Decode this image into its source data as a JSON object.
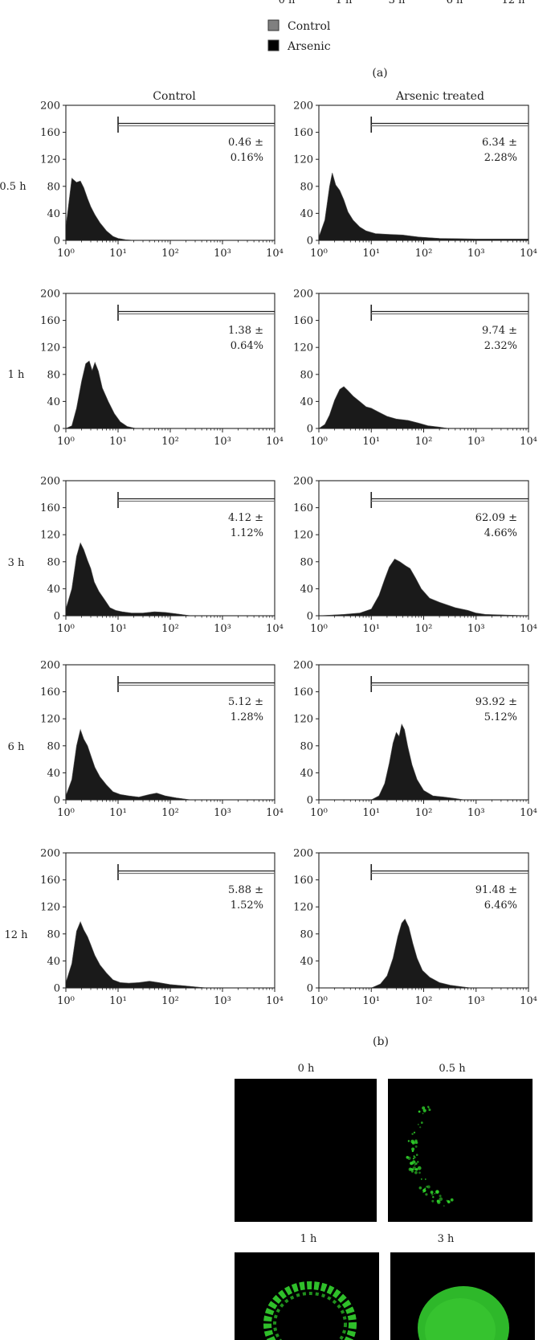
{
  "panel_a": {
    "label": "(a)",
    "x_tick_labels_clipped": [
      "0 h",
      "1 h",
      "3 h",
      "6 h",
      "12 h"
    ],
    "legend": [
      {
        "name": "Control",
        "color": "#808080"
      },
      {
        "name": "Arsenic",
        "color": "#000000"
      }
    ]
  },
  "panel_b": {
    "label": "(b)",
    "column_titles": [
      "Control",
      "Arsenic treated"
    ],
    "row_labels": [
      "0.5 h",
      "1 h",
      "3 h",
      "6 h",
      "12 h"
    ]
  },
  "panel_c": {
    "column_labels_row1": [
      "0 h",
      "0.5 h"
    ],
    "column_labels_row2": [
      "1 h",
      "3 h"
    ],
    "image_color": "#000000",
    "fluorescence_color": "#22c22a"
  },
  "chart_data": [
    {
      "type": "area",
      "panel": "b",
      "row": "0.5 h",
      "column": "Control",
      "xscale": "log",
      "xlim": [
        1,
        10000
      ],
      "ylim": [
        0,
        200
      ],
      "yticks": [
        0,
        40,
        80,
        120,
        160,
        200
      ],
      "xtick_labels": [
        "10⁰",
        "10¹",
        "10²",
        "10³",
        "10⁴"
      ],
      "gate_start": 10,
      "gate_value": "0.46 ±",
      "gate_error": "0.16%",
      "x": [
        1,
        1.3,
        1.6,
        1.9,
        2.2,
        2.6,
        3,
        3.6,
        4.5,
        6,
        8,
        10,
        14,
        20,
        50,
        10000
      ],
      "y": [
        20,
        92,
        86,
        88,
        78,
        62,
        50,
        38,
        26,
        14,
        6,
        3,
        1,
        0,
        0,
        0
      ]
    },
    {
      "type": "area",
      "panel": "b",
      "row": "0.5 h",
      "column": "Arsenic treated",
      "xscale": "log",
      "xlim": [
        1,
        10000
      ],
      "ylim": [
        0,
        200
      ],
      "yticks": [
        0,
        40,
        80,
        120,
        160,
        200
      ],
      "xtick_labels": [
        "10⁰",
        "10¹",
        "10²",
        "10³",
        "10⁴"
      ],
      "gate_start": 10,
      "gate_value": "6.34 ±",
      "gate_error": "2.28%",
      "x": [
        1,
        1.3,
        1.6,
        1.8,
        2.1,
        2.5,
        3,
        3.6,
        4.5,
        6,
        8,
        12,
        20,
        40,
        80,
        200,
        1000,
        10000
      ],
      "y": [
        5,
        30,
        80,
        100,
        82,
        74,
        60,
        42,
        30,
        20,
        14,
        10,
        9,
        8,
        5,
        3,
        2,
        2
      ]
    },
    {
      "type": "area",
      "panel": "b",
      "row": "1 h",
      "column": "Control",
      "xscale": "log",
      "xlim": [
        1,
        10000
      ],
      "ylim": [
        0,
        200
      ],
      "yticks": [
        0,
        40,
        80,
        120,
        160,
        200
      ],
      "xtick_labels": [
        "10⁰",
        "10¹",
        "10²",
        "10³",
        "10⁴"
      ],
      "gate_start": 10,
      "gate_value": "1.38 ±",
      "gate_error": "0.64%",
      "x": [
        1,
        1.3,
        1.6,
        2,
        2.4,
        2.8,
        3.2,
        3.6,
        4.2,
        5,
        6.5,
        8.5,
        11,
        15,
        22,
        10000
      ],
      "y": [
        0,
        4,
        30,
        70,
        96,
        100,
        86,
        98,
        85,
        60,
        40,
        22,
        10,
        3,
        0,
        0
      ]
    },
    {
      "type": "area",
      "panel": "b",
      "row": "1 h",
      "column": "Arsenic treated",
      "xscale": "log",
      "xlim": [
        1,
        10000
      ],
      "ylim": [
        0,
        200
      ],
      "yticks": [
        0,
        40,
        80,
        120,
        160,
        200
      ],
      "xtick_labels": [
        "10⁰",
        "10¹",
        "10²",
        "10³",
        "10⁴"
      ],
      "gate_start": 10,
      "gate_value": "9.74 ±",
      "gate_error": "2.32%",
      "x": [
        1,
        1.3,
        1.6,
        2,
        2.5,
        3,
        3.6,
        4.5,
        6,
        8,
        10,
        14,
        20,
        30,
        50,
        80,
        120,
        200,
        300,
        10000
      ],
      "y": [
        0,
        6,
        20,
        42,
        58,
        62,
        56,
        48,
        40,
        32,
        30,
        24,
        18,
        14,
        12,
        8,
        4,
        2,
        0,
        0
      ]
    },
    {
      "type": "area",
      "panel": "b",
      "row": "3 h",
      "column": "Control",
      "xscale": "log",
      "xlim": [
        1,
        10000
      ],
      "ylim": [
        0,
        200
      ],
      "yticks": [
        0,
        40,
        80,
        120,
        160,
        200
      ],
      "xtick_labels": [
        "10⁰",
        "10¹",
        "10²",
        "10³",
        "10⁴"
      ],
      "gate_start": 10,
      "gate_value": "4.12 ±",
      "gate_error": "1.12%",
      "x": [
        1,
        1.3,
        1.6,
        1.9,
        2.2,
        2.6,
        3,
        3.5,
        4.3,
        5.5,
        7,
        9,
        12,
        18,
        30,
        50,
        80,
        130,
        250,
        10000
      ],
      "y": [
        10,
        40,
        88,
        108,
        98,
        82,
        70,
        50,
        36,
        24,
        12,
        8,
        6,
        4,
        4,
        6,
        5,
        3,
        0,
        0
      ]
    },
    {
      "type": "area",
      "panel": "b",
      "row": "3 h",
      "column": "Arsenic treated",
      "xscale": "log",
      "xlim": [
        1,
        10000
      ],
      "ylim": [
        0,
        200
      ],
      "yticks": [
        0,
        40,
        80,
        120,
        160,
        200
      ],
      "xtick_labels": [
        "10⁰",
        "10¹",
        "10²",
        "10³",
        "10⁴"
      ],
      "gate_start": 10,
      "gate_value": "62.09 ±",
      "gate_error": "4.66%",
      "x": [
        1,
        3,
        6,
        10,
        14,
        18,
        22,
        28,
        35,
        45,
        55,
        70,
        90,
        130,
        200,
        400,
        700,
        1000,
        1500,
        10000
      ],
      "y": [
        0,
        2,
        4,
        10,
        30,
        54,
        72,
        84,
        80,
        74,
        70,
        56,
        40,
        26,
        20,
        12,
        8,
        4,
        2,
        0
      ]
    },
    {
      "type": "area",
      "panel": "b",
      "row": "6 h",
      "column": "Control",
      "xscale": "log",
      "xlim": [
        1,
        10000
      ],
      "ylim": [
        0,
        200
      ],
      "yticks": [
        0,
        40,
        80,
        120,
        160,
        200
      ],
      "xtick_labels": [
        "10⁰",
        "10¹",
        "10²",
        "10³",
        "10⁴"
      ],
      "gate_start": 10,
      "gate_value": "5.12 ±",
      "gate_error": "1.28%",
      "x": [
        1,
        1.3,
        1.6,
        1.9,
        2.2,
        2.6,
        3,
        3.6,
        4.5,
        6,
        8,
        11,
        16,
        25,
        40,
        55,
        80,
        130,
        250,
        10000
      ],
      "y": [
        6,
        30,
        80,
        104,
        90,
        80,
        66,
        48,
        34,
        22,
        12,
        8,
        6,
        4,
        8,
        10,
        6,
        3,
        0,
        0
      ]
    },
    {
      "type": "area",
      "panel": "b",
      "row": "6 h",
      "column": "Arsenic treated",
      "xscale": "log",
      "xlim": [
        1,
        10000
      ],
      "ylim": [
        0,
        200
      ],
      "yticks": [
        0,
        40,
        80,
        120,
        160,
        200
      ],
      "xtick_labels": [
        "10⁰",
        "10¹",
        "10²",
        "10³",
        "10⁴"
      ],
      "gate_start": 10,
      "gate_value": "93.92 ±",
      "gate_error": "5.12%",
      "x": [
        1,
        10,
        14,
        18,
        22,
        26,
        30,
        34,
        38,
        43,
        50,
        60,
        75,
        100,
        150,
        250,
        400,
        600,
        10000
      ],
      "y": [
        0,
        0,
        6,
        24,
        54,
        84,
        100,
        94,
        112,
        104,
        78,
        52,
        30,
        14,
        6,
        4,
        2,
        0,
        0
      ]
    },
    {
      "type": "area",
      "panel": "b",
      "row": "12 h",
      "column": "Control",
      "xscale": "log",
      "xlim": [
        1,
        10000
      ],
      "ylim": [
        0,
        200
      ],
      "yticks": [
        0,
        40,
        80,
        120,
        160,
        200
      ],
      "xtick_labels": [
        "10⁰",
        "10¹",
        "10²",
        "10³",
        "10⁴"
      ],
      "gate_start": 10,
      "gate_value": "5.88 ±",
      "gate_error": "1.52%",
      "x": [
        1,
        1.3,
        1.6,
        1.9,
        2.2,
        2.6,
        3,
        3.6,
        4.5,
        6,
        8,
        11,
        16,
        25,
        40,
        60,
        100,
        200,
        500,
        10000
      ],
      "y": [
        8,
        36,
        84,
        98,
        86,
        76,
        64,
        48,
        34,
        22,
        12,
        8,
        7,
        8,
        10,
        8,
        5,
        3,
        0,
        0
      ]
    },
    {
      "type": "area",
      "panel": "b",
      "row": "12 h",
      "column": "Arsenic treated",
      "xscale": "log",
      "xlim": [
        1,
        10000
      ],
      "ylim": [
        0,
        200
      ],
      "yticks": [
        0,
        40,
        80,
        120,
        160,
        200
      ],
      "xtick_labels": [
        "10⁰",
        "10¹",
        "10²",
        "10³",
        "10⁴"
      ],
      "gate_start": 10,
      "gate_value": "91.48 ±",
      "gate_error": "6.46%",
      "x": [
        1,
        10,
        15,
        20,
        26,
        32,
        38,
        44,
        52,
        62,
        75,
        95,
        130,
        200,
        320,
        500,
        800,
        10000
      ],
      "y": [
        0,
        0,
        6,
        18,
        44,
        76,
        96,
        102,
        90,
        66,
        44,
        26,
        16,
        8,
        4,
        2,
        0,
        0
      ]
    }
  ]
}
